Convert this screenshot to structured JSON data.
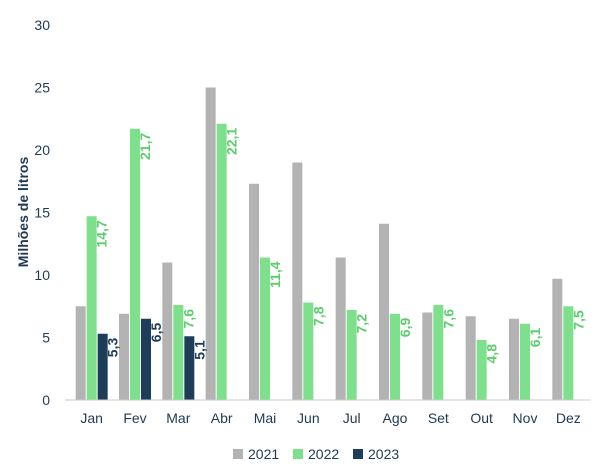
{
  "chart_data": {
    "type": "bar",
    "title": "",
    "xlabel": "",
    "ylabel": "Milhões de litros",
    "ylim": [
      0,
      30
    ],
    "yticks": [
      "0",
      "5",
      "10",
      "15",
      "20",
      "25",
      "30"
    ],
    "yticks_values": [
      0,
      5,
      10,
      15,
      20,
      25,
      30
    ],
    "grid": false,
    "legend_position": "bottom",
    "categories": [
      "Jan",
      "Fev",
      "Mar",
      "Abr",
      "Mai",
      "Jun",
      "Jul",
      "Ago",
      "Set",
      "Out",
      "Nov",
      "Dez"
    ],
    "series": [
      {
        "name": "2021",
        "color": "#b3b3b3",
        "label_color": "",
        "values": [
          7.5,
          6.9,
          11.0,
          25.0,
          17.3,
          19.0,
          11.4,
          14.1,
          7.0,
          6.7,
          6.5,
          9.7
        ],
        "labels": [
          "",
          "",
          "",
          "",
          "",
          "",
          "",
          "",
          "",
          "",
          "",
          ""
        ]
      },
      {
        "name": "2022",
        "color": "#7ee08c",
        "label_color": "#5ccc6c",
        "values": [
          14.7,
          21.7,
          7.6,
          22.1,
          11.4,
          7.8,
          7.2,
          6.9,
          7.6,
          4.8,
          6.1,
          7.5
        ],
        "labels": [
          "14,7",
          "21,7",
          "7,6",
          "22,1",
          "11,4",
          "7,8",
          "7,2",
          "6,9",
          "7,6",
          "4,8",
          "6,1",
          "7,5"
        ]
      },
      {
        "name": "2023",
        "color": "#1e3d59",
        "label_color": "#1e3d59",
        "values": [
          5.3,
          6.5,
          5.1,
          null,
          null,
          null,
          null,
          null,
          null,
          null,
          null,
          null
        ],
        "labels": [
          "5,3",
          "6,5",
          "5,1",
          "",
          "",
          "",
          "",
          "",
          "",
          "",
          "",
          ""
        ]
      }
    ]
  }
}
